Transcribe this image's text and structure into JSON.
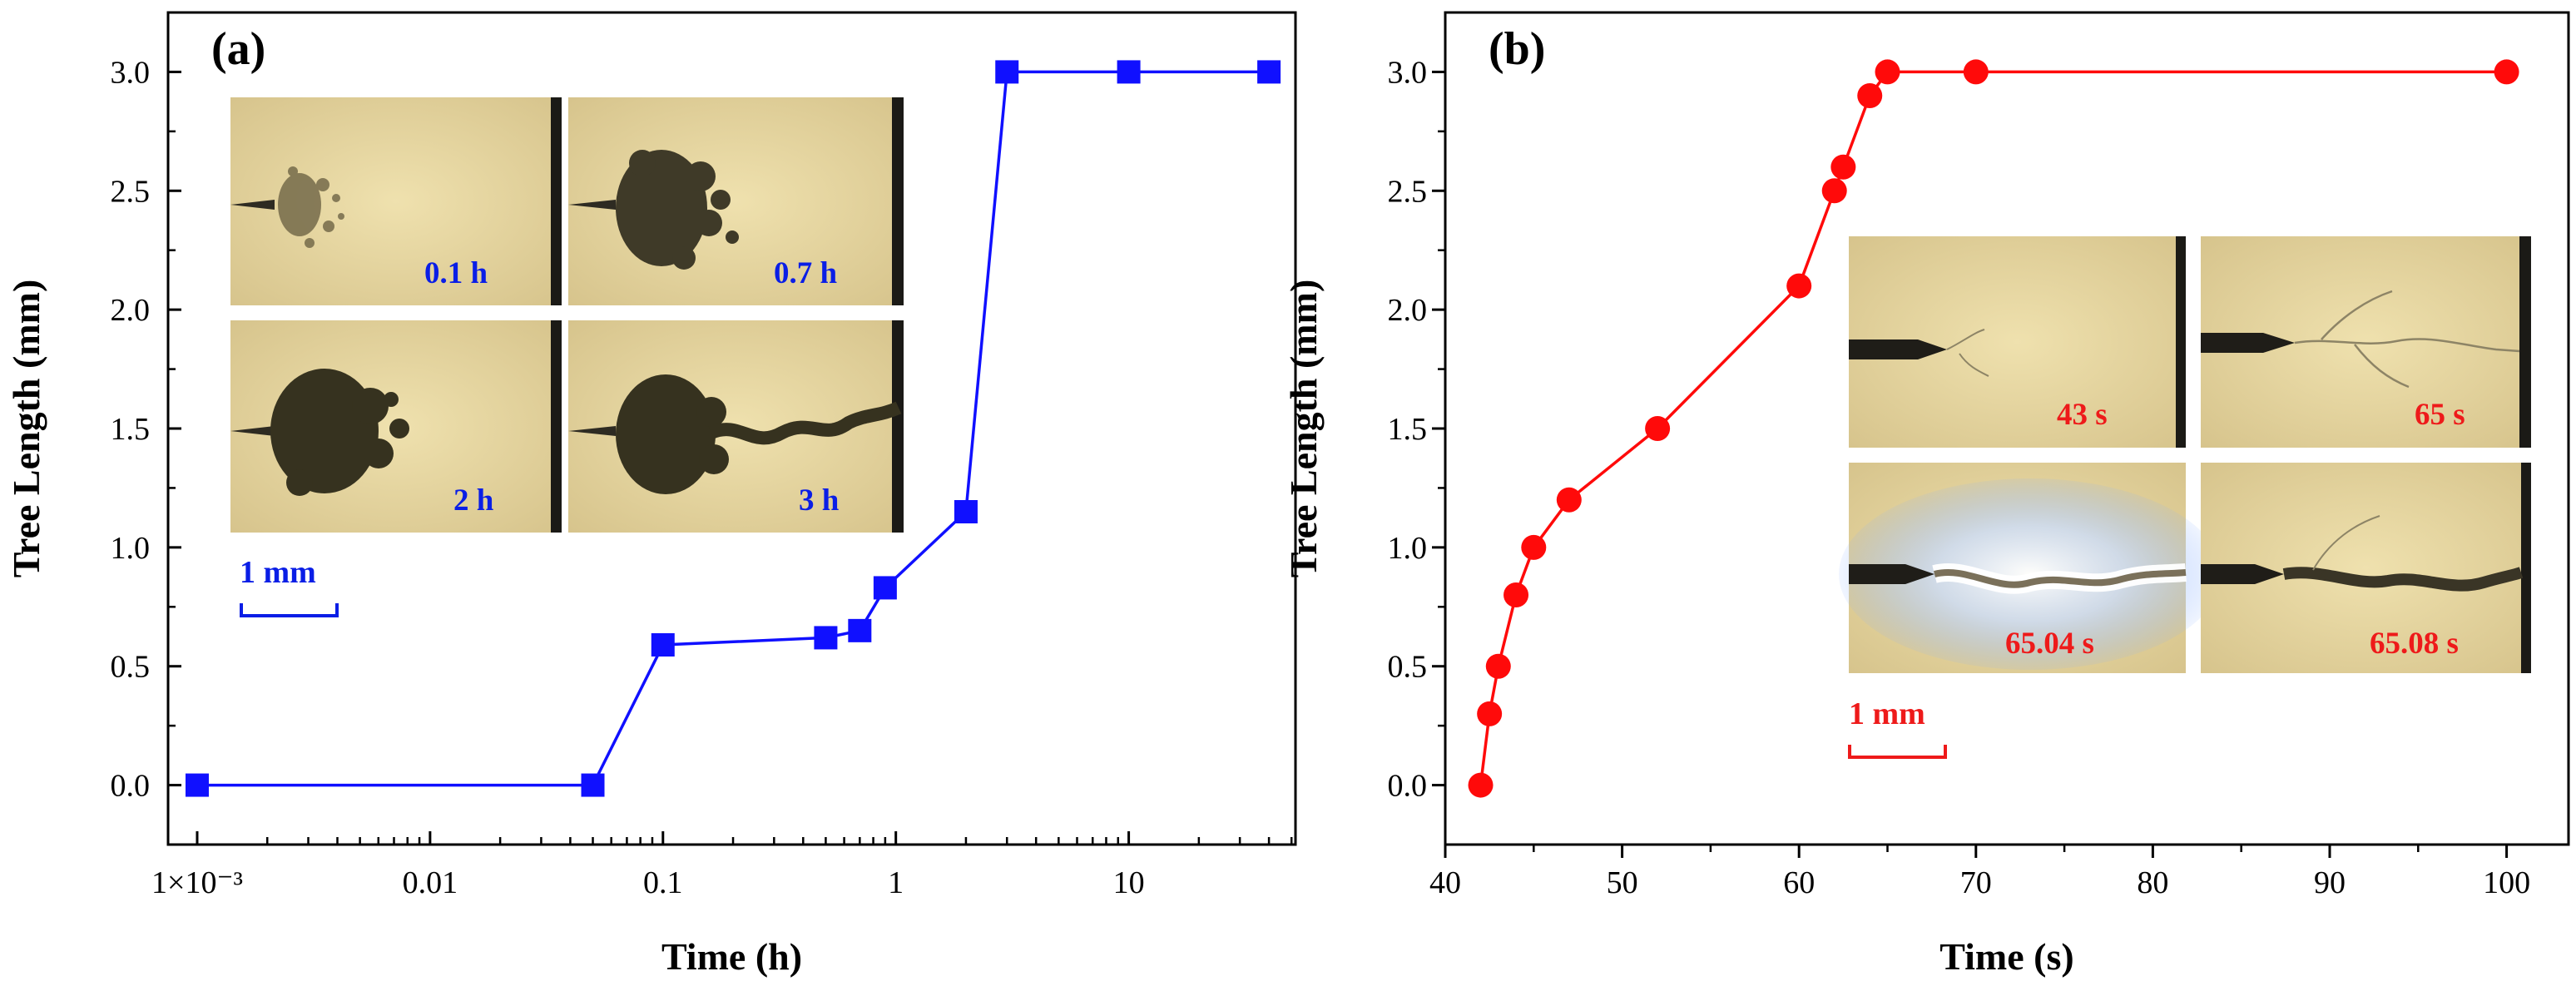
{
  "chart_data": [
    {
      "panel": "(a)",
      "type": "line",
      "xscale": "log",
      "xlabel": "Time (h)",
      "ylabel": "Tree Length (mm)",
      "xlim": [
        0.00075,
        52
      ],
      "ylim": [
        -0.25,
        3.25
      ],
      "xticks": [
        0.001,
        0.01,
        0.1,
        1,
        10
      ],
      "xtick_labels": [
        "1×10⁻³",
        "0.01",
        "0.1",
        "1",
        "10"
      ],
      "yticks": [
        0,
        0.5,
        1,
        1.5,
        2,
        2.5,
        3
      ],
      "ytick_labels": [
        "0.0",
        "0.5",
        "1.0",
        "1.5",
        "2.0",
        "2.5",
        "3.0"
      ],
      "color": "#1010ff",
      "marker": "square",
      "series": [
        {
          "name": "Tree length",
          "x": [
            0.001,
            0.05,
            0.1,
            0.5,
            0.7,
            0.9,
            2,
            3,
            10,
            40
          ],
          "y": [
            0.0,
            0.0,
            0.59,
            0.62,
            0.65,
            0.83,
            1.15,
            3.0,
            3.0,
            3.0
          ]
        }
      ],
      "insets": {
        "label_color": "#0a1ee6",
        "labels": [
          "0.1 h",
          "0.7 h",
          "2 h",
          "3 h"
        ],
        "scale_bar": "1 mm"
      }
    },
    {
      "panel": "(b)",
      "type": "line",
      "xscale": "linear",
      "xlabel": "Time (s)",
      "ylabel": "Tree Length (mm)",
      "xlim": [
        40,
        103.5
      ],
      "ylim": [
        -0.25,
        3.25
      ],
      "xticks": [
        40,
        50,
        60,
        70,
        80,
        90,
        100
      ],
      "xtick_labels": [
        "40",
        "50",
        "60",
        "70",
        "80",
        "90",
        "100"
      ],
      "yticks": [
        0,
        0.5,
        1,
        1.5,
        2,
        2.5,
        3
      ],
      "ytick_labels": [
        "0.0",
        "0.5",
        "1.0",
        "1.5",
        "2.0",
        "2.5",
        "3.0"
      ],
      "color": "#ff0a0a",
      "marker": "circle",
      "series": [
        {
          "name": "Tree length",
          "x": [
            42,
            42.5,
            43,
            44,
            45,
            47,
            52,
            60,
            62,
            62.5,
            64,
            65,
            70,
            100
          ],
          "y": [
            0.0,
            0.3,
            0.5,
            0.8,
            1.0,
            1.2,
            1.5,
            2.1,
            2.5,
            2.6,
            2.9,
            3.0,
            3.0,
            3.0
          ]
        }
      ],
      "insets": {
        "label_color": "#ee1a1a",
        "labels": [
          "43 s",
          "65 s",
          "65.04 s",
          "65.08 s"
        ],
        "scale_bar": "1 mm"
      }
    }
  ]
}
